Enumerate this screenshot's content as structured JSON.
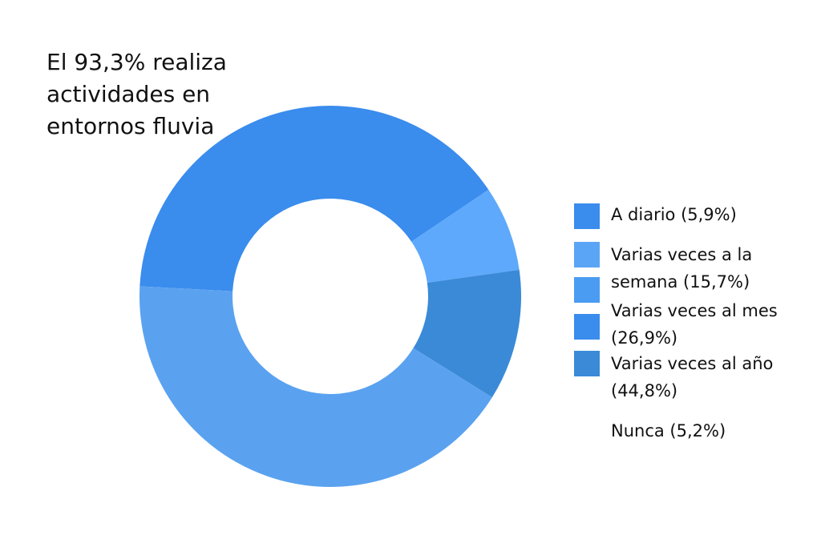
{
  "chart_data": {
    "type": "pie",
    "title": "El 93,3% realiza actividades en entornos fluvia",
    "categories": [
      "A diario (5,9%)",
      "Varias veces a la semana (15,7%)",
      "Varias veces al mes (26,9%)",
      "Varias veces al año (44,8%)",
      "Nunca (5,2%)"
    ],
    "values": [
      5.9,
      15.7,
      26.9,
      44.8,
      5.2
    ],
    "legend_position": "right",
    "colors": [
      "#3a8ced",
      "#5aa5f5",
      "#4a9cf2",
      "#3a8ced",
      "#3a8ad8"
    ],
    "legend": [
      {
        "lines": [
          "A diario (5,9%)"
        ],
        "swatch_color": "#3a8ced"
      },
      {
        "lines": [
          "Varias veces a la",
          "semana (15,7%)"
        ],
        "swatch_color": "#5aa5f5"
      },
      {
        "lines": [
          "Varias veces al mes",
          "(26,9%)"
        ],
        "swatch_color": "#3a8ced"
      },
      {
        "lines": [
          "Varias veces al año",
          "(44,8%)"
        ],
        "swatch_color": "#3a8ad8"
      },
      {
        "lines": [
          "Nunca (5,2%)"
        ],
        "swatch_color": ""
      }
    ],
    "swatch_extra_color": "#4a9cf2"
  },
  "donut_segments": [
    {
      "label": "Varias veces al año",
      "color": "#3a8ced"
    },
    {
      "label": "A diario",
      "color": "#5ea9fb"
    },
    {
      "label": "Nunca",
      "color": "#3a8ad8"
    },
    {
      "label": "Varias veces a la semana",
      "color": "#5aa2f0"
    }
  ]
}
